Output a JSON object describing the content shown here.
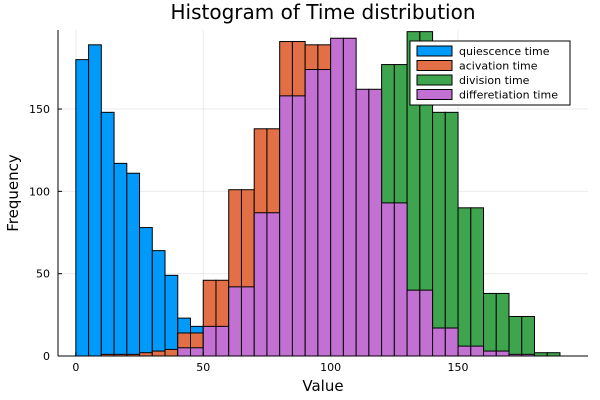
{
  "chart_data": {
    "type": "bar",
    "title": "Histogram of Time distribution",
    "xlabel": "Value",
    "ylabel": "Frequency",
    "xlim": [
      -7,
      201
    ],
    "ylim": [
      0,
      198
    ],
    "xticks": [
      0,
      50,
      100,
      150
    ],
    "yticks": [
      0,
      50,
      100,
      150
    ],
    "grid": true,
    "legend_position": "top-right",
    "bin_width": 5,
    "series": [
      {
        "name": "quiescence time",
        "color": "#009AFA",
        "bins": [
          {
            "x": 0,
            "count": 180
          },
          {
            "x": 5,
            "count": 189
          },
          {
            "x": 10,
            "count": 148
          },
          {
            "x": 15,
            "count": 117
          },
          {
            "x": 20,
            "count": 111
          },
          {
            "x": 25,
            "count": 78
          },
          {
            "x": 30,
            "count": 64
          },
          {
            "x": 35,
            "count": 49
          },
          {
            "x": 40,
            "count": 23
          },
          {
            "x": 45,
            "count": 18
          },
          {
            "x": 50,
            "count": 12
          },
          {
            "x": 55,
            "count": 7
          },
          {
            "x": 60,
            "count": 5
          },
          {
            "x": 65,
            "count": 3
          }
        ]
      },
      {
        "name": "acivation time",
        "color": "#E36F47",
        "bins": [
          {
            "x": 10,
            "count": 1
          },
          {
            "x": 15,
            "count": 1
          },
          {
            "x": 20,
            "count": 1
          },
          {
            "x": 25,
            "count": 2
          },
          {
            "x": 30,
            "count": 3
          },
          {
            "x": 35,
            "count": 4
          },
          {
            "x": 40,
            "count": 14
          },
          {
            "x": 45,
            "count": 14
          },
          {
            "x": 50,
            "count": 46
          },
          {
            "x": 55,
            "count": 46
          },
          {
            "x": 60,
            "count": 101
          },
          {
            "x": 65,
            "count": 101
          },
          {
            "x": 70,
            "count": 138
          },
          {
            "x": 75,
            "count": 138
          },
          {
            "x": 80,
            "count": 191
          },
          {
            "x": 85,
            "count": 191
          },
          {
            "x": 90,
            "count": 189
          },
          {
            "x": 95,
            "count": 189
          },
          {
            "x": 100,
            "count": 148
          },
          {
            "x": 105,
            "count": 148
          },
          {
            "x": 110,
            "count": 80
          },
          {
            "x": 115,
            "count": 80
          },
          {
            "x": 120,
            "count": 40
          },
          {
            "x": 125,
            "count": 40
          }
        ]
      },
      {
        "name": "division time",
        "color": "#3EA44E",
        "bins": [
          {
            "x": 110,
            "count": 158
          },
          {
            "x": 115,
            "count": 158
          },
          {
            "x": 120,
            "count": 177
          },
          {
            "x": 125,
            "count": 177
          },
          {
            "x": 130,
            "count": 197
          },
          {
            "x": 135,
            "count": 197
          },
          {
            "x": 140,
            "count": 148
          },
          {
            "x": 145,
            "count": 148
          },
          {
            "x": 150,
            "count": 90
          },
          {
            "x": 155,
            "count": 90
          },
          {
            "x": 160,
            "count": 38
          },
          {
            "x": 165,
            "count": 38
          },
          {
            "x": 170,
            "count": 24
          },
          {
            "x": 175,
            "count": 24
          },
          {
            "x": 180,
            "count": 2
          },
          {
            "x": 185,
            "count": 2
          }
        ]
      },
      {
        "name": "differetiation time",
        "color": "#C271D2",
        "bins": [
          {
            "x": 40,
            "count": 5
          },
          {
            "x": 45,
            "count": 5
          },
          {
            "x": 50,
            "count": 18
          },
          {
            "x": 55,
            "count": 18
          },
          {
            "x": 60,
            "count": 42
          },
          {
            "x": 65,
            "count": 42
          },
          {
            "x": 70,
            "count": 87
          },
          {
            "x": 75,
            "count": 87
          },
          {
            "x": 80,
            "count": 158
          },
          {
            "x": 85,
            "count": 158
          },
          {
            "x": 90,
            "count": 174
          },
          {
            "x": 95,
            "count": 174
          },
          {
            "x": 100,
            "count": 193
          },
          {
            "x": 105,
            "count": 193
          },
          {
            "x": 110,
            "count": 162
          },
          {
            "x": 115,
            "count": 162
          },
          {
            "x": 120,
            "count": 93
          },
          {
            "x": 125,
            "count": 93
          },
          {
            "x": 130,
            "count": 40
          },
          {
            "x": 135,
            "count": 40
          },
          {
            "x": 140,
            "count": 17
          },
          {
            "x": 145,
            "count": 17
          },
          {
            "x": 150,
            "count": 6
          },
          {
            "x": 155,
            "count": 6
          },
          {
            "x": 160,
            "count": 3
          },
          {
            "x": 165,
            "count": 3
          },
          {
            "x": 170,
            "count": 1
          },
          {
            "x": 175,
            "count": 1
          }
        ]
      }
    ]
  }
}
